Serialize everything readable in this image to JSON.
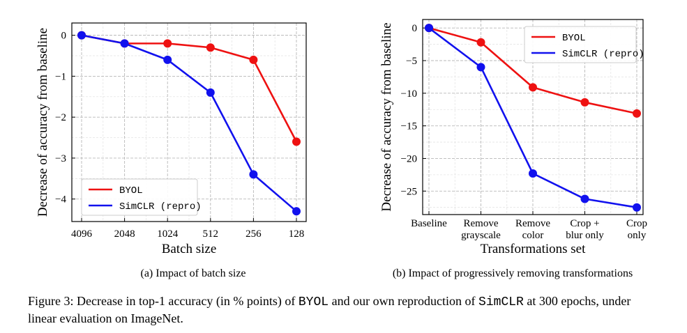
{
  "chart_data": [
    {
      "type": "line",
      "categories": [
        "4096",
        "2048",
        "1024",
        "512",
        "256",
        "128"
      ],
      "series": [
        {
          "name": "BYOL",
          "color": "#ee1111",
          "values": [
            0,
            -0.2,
            -0.2,
            -0.3,
            -0.6,
            -2.6
          ]
        },
        {
          "name": "SimCLR (repro)",
          "color": "#1111ee",
          "values": [
            0,
            -0.2,
            -0.6,
            -1.4,
            -3.4,
            -4.3
          ]
        }
      ],
      "title": "",
      "xlabel": "Batch size",
      "ylabel": "Decrease of accuracy from baseline",
      "ylim": [
        -4.55,
        0.3
      ],
      "yticks": [
        0,
        -1,
        -2,
        -3,
        -4
      ],
      "ytick_labels": [
        "0",
        "−1",
        "−2",
        "−3",
        "−4"
      ],
      "grid": true,
      "legend": "bottom-left"
    },
    {
      "type": "line",
      "categories": [
        "Baseline",
        "Remove grayscale",
        "Remove color",
        "Crop + blur only",
        "Crop only"
      ],
      "category_lines": [
        [
          "Baseline"
        ],
        [
          "Remove",
          "grayscale"
        ],
        [
          "Remove",
          "color"
        ],
        [
          "Crop +",
          "blur only"
        ],
        [
          "Crop",
          "only"
        ]
      ],
      "series": [
        {
          "name": "BYOL",
          "color": "#ee1111",
          "values": [
            0,
            -2.2,
            -9.1,
            -11.4,
            -13.1
          ]
        },
        {
          "name": "SimCLR (repro)",
          "color": "#1111ee",
          "values": [
            0,
            -6,
            -22.3,
            -26.2,
            -27.5
          ]
        }
      ],
      "title": "",
      "xlabel": "Transformations set",
      "ylabel": "Decrease of accuracy from baseline",
      "ylim": [
        -28.6,
        1.3
      ],
      "yticks": [
        0,
        -5,
        -10,
        -15,
        -20,
        -25
      ],
      "ytick_labels": [
        "0",
        "−5",
        "−10",
        "−15",
        "−20",
        "−25"
      ],
      "grid": true,
      "legend": "top-right"
    }
  ],
  "captions": {
    "a": "(a) Impact of batch size",
    "b": "(b) Impact of progressively removing transformations"
  },
  "figure_caption": {
    "p1": "Figure 3: Decrease in top-1 accuracy (in % points) of ",
    "byol": "BYOL",
    "p2": " and our own reproduction of ",
    "simclr": "SimCLR",
    "p3": " at 300 epochs, under linear evaluation on ImageNet."
  }
}
